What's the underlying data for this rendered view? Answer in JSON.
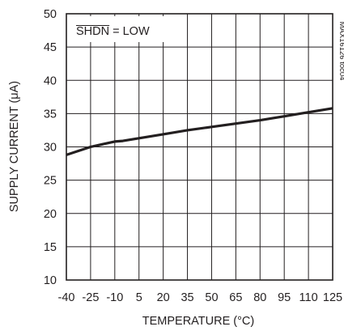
{
  "chart_data": {
    "type": "line",
    "title": "",
    "xlabel": "TEMPERATURE (°C)",
    "ylabel": "SUPPLY CURRENT (μA)",
    "xlim": [
      -40,
      125
    ],
    "ylim": [
      10,
      50
    ],
    "x_ticks": [
      -40,
      -25,
      -10,
      5,
      20,
      35,
      50,
      65,
      80,
      95,
      110,
      125
    ],
    "y_ticks": [
      10,
      15,
      20,
      25,
      30,
      35,
      40,
      45,
      50
    ],
    "grid": true,
    "series": [
      {
        "x": [
          -40,
          -25,
          -10,
          -5,
          5,
          20,
          35,
          50,
          65,
          80,
          95,
          110,
          125
        ],
        "y": [
          28.8,
          30.0,
          30.8,
          30.9,
          31.3,
          31.9,
          32.5,
          33.0,
          33.5,
          34.0,
          34.6,
          35.2,
          35.8
        ]
      }
    ],
    "annotation": {
      "overline_part": "SHDN",
      "rest": " = LOW"
    },
    "side_label": "MAX16126 toc04"
  },
  "colors": {
    "line": "#231f20",
    "grid": "#231f20",
    "text": "#231f20"
  }
}
